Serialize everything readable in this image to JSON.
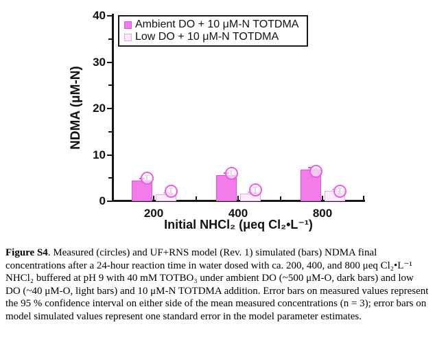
{
  "figure": {
    "caption": {
      "label": "Figure S4",
      "text": ".  Measured (circles) and UF+RNS model (Rev. 1) simulated (bars) NDMA final concentrations after a 24-hour reaction time in water dosed with ca. 200, 400, and 800 μeq Cl₂•L⁻¹ NHCl₂ buffered at pH 9 with 40 mM TOTBO₃ under ambient DO (~500 μM-O, dark bars) and low DO (~40 μM-O, light bars) and 10 μM-N TOTDMA addition.  Error bars on measured values represent the 95 % confidence interval on either side of the mean measured concentrations (n = 3); error bars on model simulated values represent one standard error in the model parameter estimates."
    }
  },
  "chart_data": {
    "type": "bar",
    "title": "",
    "xlabel": "Initial NHCl₂ (μeq Cl₂•L⁻¹)",
    "ylabel": "NDMA (μM-N)",
    "categories": [
      "200",
      "400",
      "800"
    ],
    "ylim": [
      0,
      40
    ],
    "y_major_ticks": [
      0,
      10,
      20,
      30,
      40
    ],
    "y_minor_ticks": [
      5,
      15,
      25,
      35
    ],
    "grid": false,
    "legend_position": "top-left-inside",
    "series": [
      {
        "key": "ambient-do",
        "name": "Ambient DO + 10 μM-N TOTDMA",
        "bar_values": [
          4.4,
          5.6,
          6.8
        ],
        "measured_values": [
          5.0,
          6.0,
          6.4
        ],
        "measured_ci_half_approx": 0.7,
        "model_se_half_approx": 0.6,
        "fill": "#f27ce9",
        "border": "#d857cc"
      },
      {
        "key": "low-do",
        "name": "Low DO + 10 μM-N TOTDMA",
        "bar_values": [
          1.5,
          1.6,
          2.2
        ],
        "measured_values": [
          2.2,
          2.4,
          2.2
        ],
        "measured_ci_half_approx": 0.7,
        "model_se_half_approx": 0.5,
        "fill": "#fdeafb",
        "border": "#f0a3e7"
      }
    ],
    "marker": {
      "shape": "circle",
      "meaning": "measured values",
      "stroke": "#e95fde"
    },
    "error_bar_color": "#c9a0c4"
  }
}
